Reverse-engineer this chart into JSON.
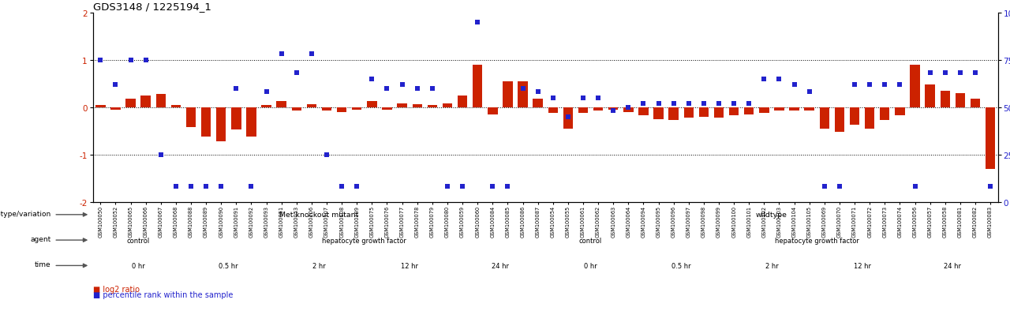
{
  "title": "GDS3148 / 1225194_1",
  "samples": [
    "GSM100050",
    "GSM100052",
    "GSM100065",
    "GSM100066",
    "GSM100067",
    "GSM100068",
    "GSM100088",
    "GSM100089",
    "GSM100090",
    "GSM100091",
    "GSM100092",
    "GSM100093",
    "GSM100051",
    "GSM100053",
    "GSM100106",
    "GSM100107",
    "GSM100108",
    "GSM100109",
    "GSM100075",
    "GSM100076",
    "GSM100077",
    "GSM100078",
    "GSM100079",
    "GSM100080",
    "GSM100059",
    "GSM100060",
    "GSM100084",
    "GSM100085",
    "GSM100086",
    "GSM100087",
    "GSM100054",
    "GSM100055",
    "GSM100061",
    "GSM100062",
    "GSM100063",
    "GSM100064",
    "GSM100094",
    "GSM100095",
    "GSM100096",
    "GSM100097",
    "GSM100098",
    "GSM100099",
    "GSM100100",
    "GSM100101",
    "GSM100102",
    "GSM100103",
    "GSM100104",
    "GSM100105",
    "GSM100069",
    "GSM100070",
    "GSM100071",
    "GSM100072",
    "GSM100073",
    "GSM100074",
    "GSM100056",
    "GSM100057",
    "GSM100058",
    "GSM100081",
    "GSM100082",
    "GSM100083"
  ],
  "log2_ratio": [
    0.05,
    -0.05,
    0.18,
    0.25,
    0.28,
    0.05,
    -0.42,
    -0.62,
    -0.72,
    -0.48,
    -0.62,
    0.05,
    0.12,
    -0.08,
    0.06,
    -0.08,
    -0.1,
    -0.05,
    0.12,
    -0.05,
    0.08,
    0.06,
    0.05,
    0.08,
    0.25,
    0.9,
    -0.15,
    0.55,
    0.55,
    0.18,
    -0.12,
    -0.45,
    -0.12,
    -0.08,
    -0.05,
    -0.1,
    -0.18,
    -0.25,
    -0.28,
    -0.22,
    -0.2,
    -0.22,
    -0.18,
    -0.15,
    -0.12,
    -0.08,
    -0.08,
    -0.08,
    -0.45,
    -0.52,
    -0.38,
    -0.45,
    -0.28,
    -0.18,
    0.9,
    0.48,
    0.35,
    0.3,
    0.18,
    -1.3
  ],
  "percentile": [
    75,
    62,
    75,
    75,
    25,
    8,
    8,
    8,
    8,
    60,
    8,
    58,
    78,
    68,
    78,
    25,
    8,
    8,
    65,
    60,
    62,
    60,
    60,
    8,
    8,
    95,
    8,
    8,
    60,
    58,
    55,
    45,
    55,
    55,
    48,
    50,
    52,
    52,
    52,
    52,
    52,
    52,
    52,
    52,
    65,
    65,
    62,
    58,
    8,
    8,
    62,
    62,
    62,
    62,
    8,
    68,
    68,
    68,
    68,
    8
  ],
  "genotype_groups": [
    {
      "label": "Met knockout mutant",
      "start": 0,
      "end": 30,
      "color": "#b3e8b3"
    },
    {
      "label": "wildtype",
      "start": 30,
      "end": 60,
      "color": "#55cc55"
    }
  ],
  "agent_groups": [
    {
      "label": "control",
      "start": 0,
      "end": 6,
      "color": "#c8bfe8"
    },
    {
      "label": "hepatocyte growth factor",
      "start": 6,
      "end": 30,
      "color": "#9988cc"
    },
    {
      "label": "control",
      "start": 30,
      "end": 36,
      "color": "#c8bfe8"
    },
    {
      "label": "hepatocyte growth factor",
      "start": 36,
      "end": 60,
      "color": "#9988cc"
    }
  ],
  "time_groups": [
    {
      "label": "0 hr",
      "start": 0,
      "end": 6,
      "color": "#fde8e8"
    },
    {
      "label": "0.5 hr",
      "start": 6,
      "end": 12,
      "color": "#f5c0b8"
    },
    {
      "label": "2 hr",
      "start": 12,
      "end": 18,
      "color": "#e89090"
    },
    {
      "label": "12 hr",
      "start": 18,
      "end": 24,
      "color": "#dc7070"
    },
    {
      "label": "24 hr",
      "start": 24,
      "end": 30,
      "color": "#c85050"
    },
    {
      "label": "0 hr",
      "start": 30,
      "end": 36,
      "color": "#fde8e8"
    },
    {
      "label": "0.5 hr",
      "start": 36,
      "end": 42,
      "color": "#f5c0b8"
    },
    {
      "label": "2 hr",
      "start": 42,
      "end": 48,
      "color": "#e89090"
    },
    {
      "label": "12 hr",
      "start": 48,
      "end": 54,
      "color": "#dc7070"
    },
    {
      "label": "24 hr",
      "start": 54,
      "end": 60,
      "color": "#c85050"
    }
  ],
  "bar_color": "#cc2200",
  "dot_color": "#2222cc",
  "background_color": "#ffffff",
  "row_labels": [
    "genotype/variation",
    "agent",
    "time"
  ]
}
